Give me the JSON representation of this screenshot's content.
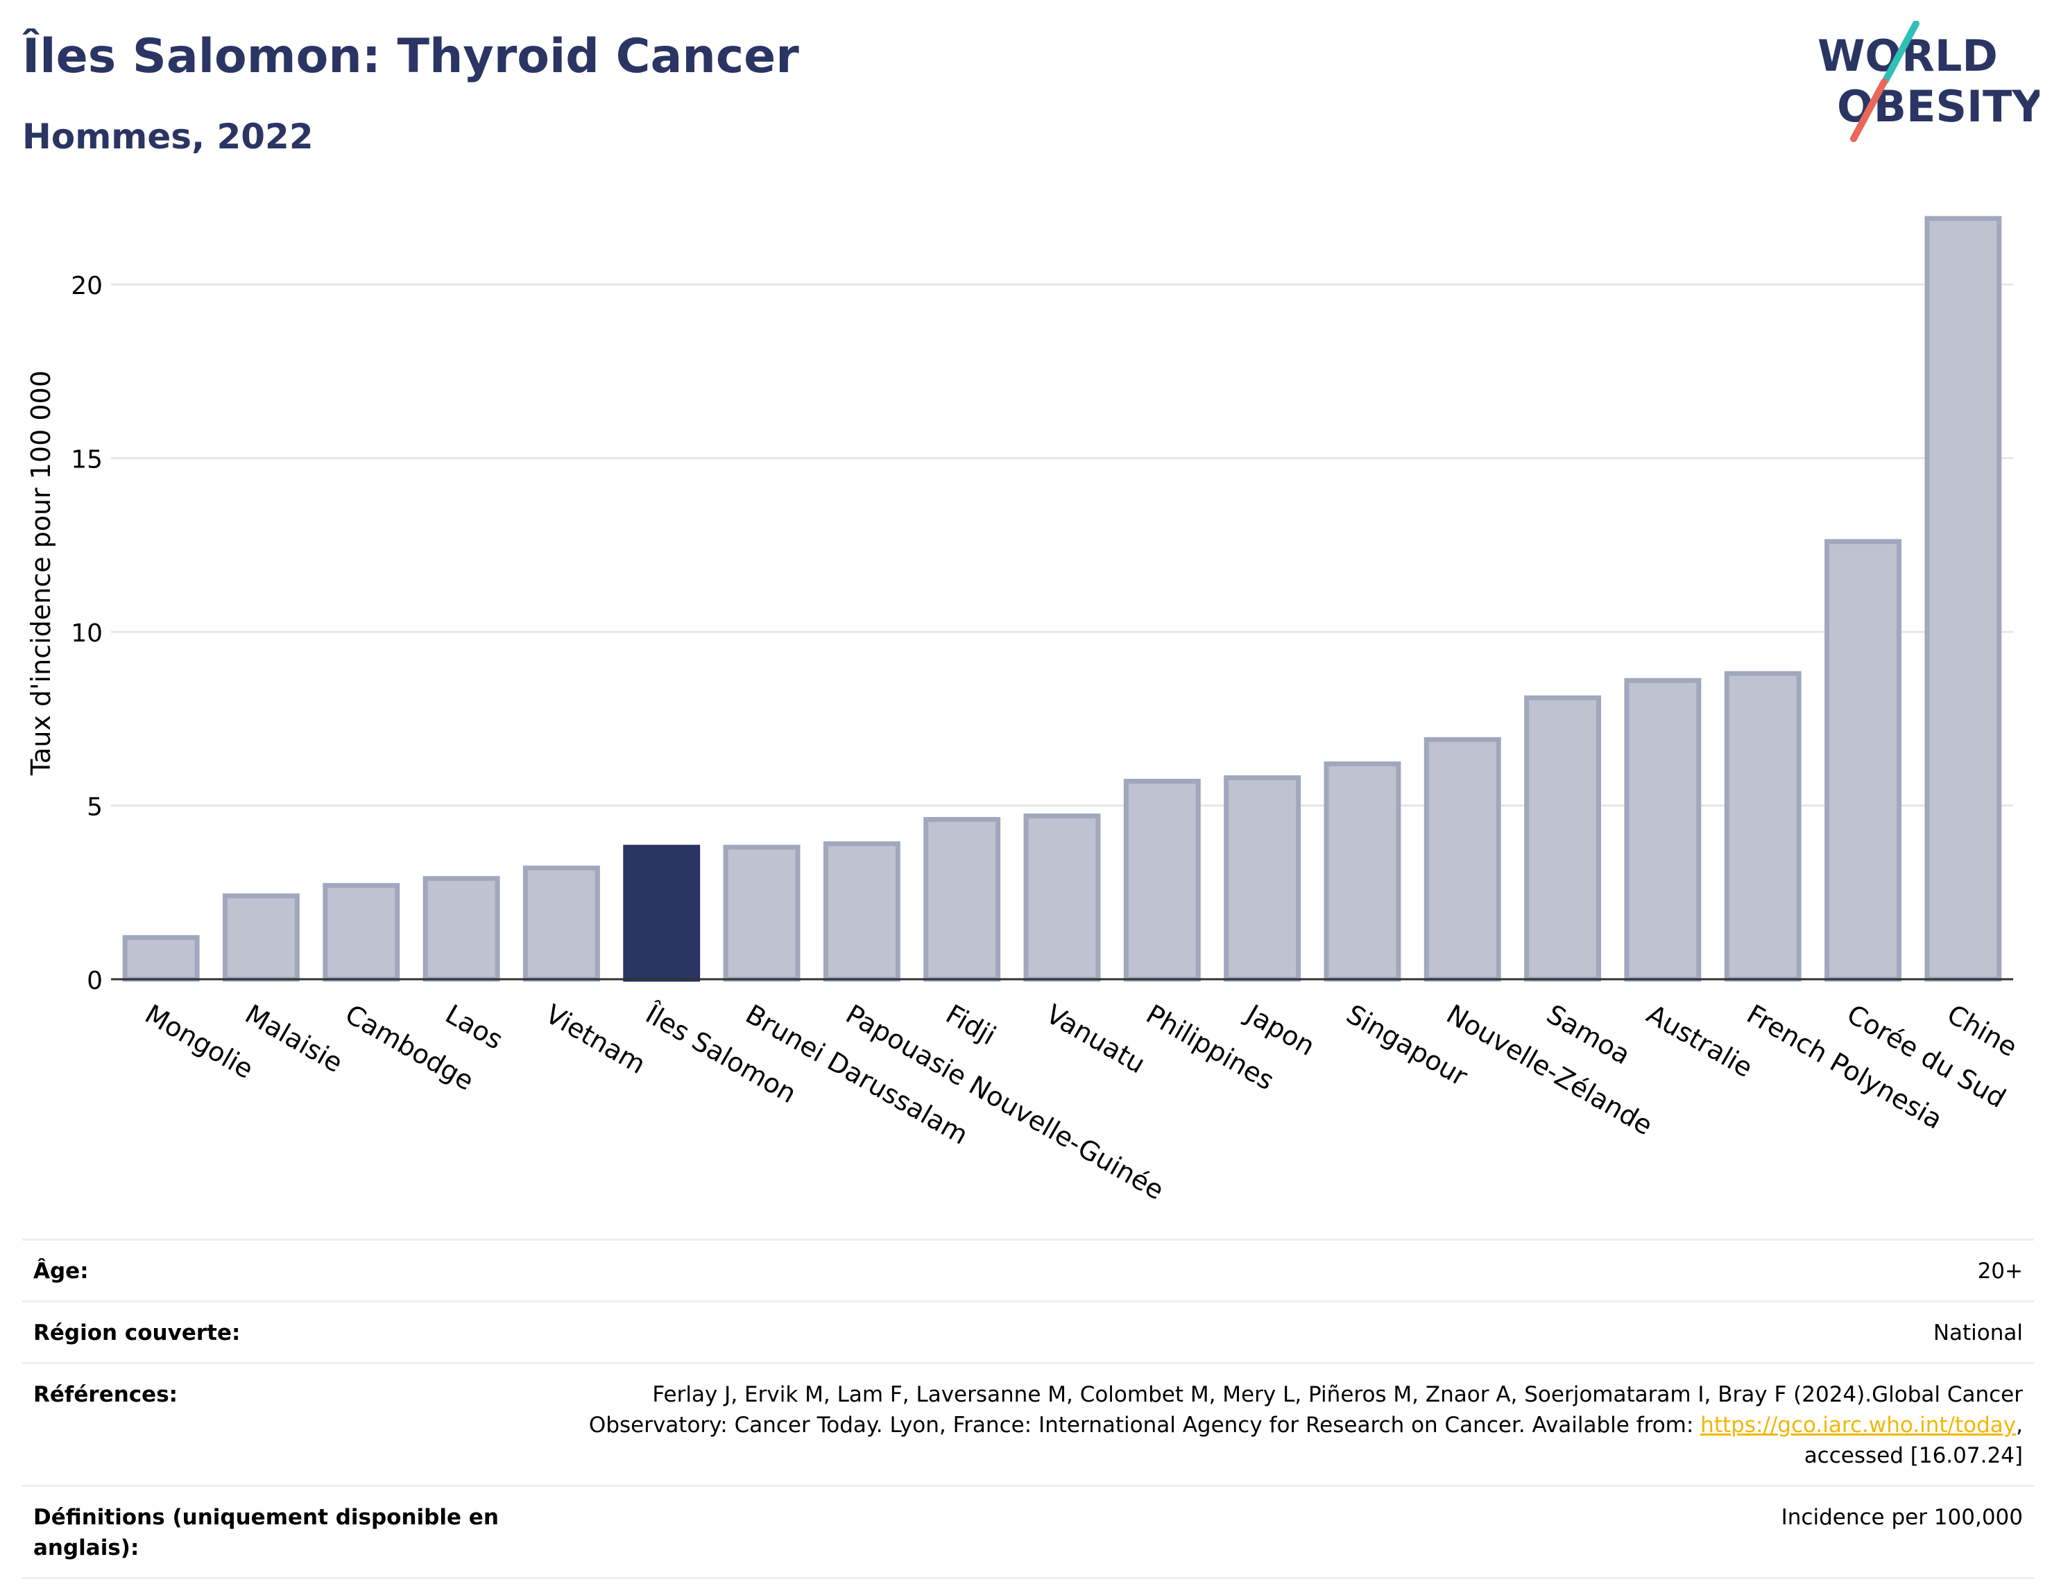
{
  "header": {
    "title": "Îles Salomon: Thyroid Cancer",
    "subtitle": "Hommes, 2022"
  },
  "logo": {
    "line1": "WORLD",
    "line2": "OBESITY"
  },
  "colors": {
    "highlight": "#2a3563",
    "bar_fill": "#bfc3d1",
    "bar_stroke": "#a1a7bd",
    "grid": "#e6e6e6",
    "title": "#2a3563",
    "link": "#f2b705",
    "logo_teal": "#2fbfb5",
    "logo_red": "#e8685a"
  },
  "chart_data": {
    "type": "bar",
    "title": "Îles Salomon: Thyroid Cancer",
    "subtitle": "Hommes, 2022",
    "xlabel": "",
    "ylabel": "Taux d'incidence pour 100 000",
    "ylim": [
      0,
      22
    ],
    "yticks": [
      0,
      5,
      10,
      15,
      20
    ],
    "grid": true,
    "highlight": "Îles Salomon",
    "categories": [
      "Mongolie",
      "Malaisie",
      "Cambodge",
      "Laos",
      "Vietnam",
      "Îles Salomon",
      "Brunei Darussalam",
      "Papouasie Nouvelle-Guinée",
      "Fidji",
      "Vanuatu",
      "Philippines",
      "Japon",
      "Singapour",
      "Nouvelle-Zélande",
      "Samoa",
      "Australie",
      "French Polynesia",
      "Corée du Sud",
      "Chine"
    ],
    "values": [
      1.2,
      2.4,
      2.7,
      2.9,
      3.2,
      3.8,
      3.8,
      3.9,
      4.6,
      4.7,
      5.7,
      5.8,
      6.2,
      6.9,
      8.1,
      8.6,
      8.8,
      12.6,
      21.9
    ]
  },
  "meta": {
    "rows": [
      {
        "label": "Âge:",
        "value": "20+"
      },
      {
        "label": "Région couverte:",
        "value": "National"
      },
      {
        "label": "Références:",
        "value_pre": "Ferlay J, Ervik M, Lam F, Laversanne M, Colombet M, Mery L, Piñeros M, Znaor A, Soerjomataram I, Bray F (2024).Global Cancer Observatory: Cancer Today. Lyon, France: International Agency for Research on Cancer. Available from: ",
        "link": "https://gco.iarc.who.int/today",
        "value_post": ", accessed [16.07.24]"
      },
      {
        "label": "Définitions (uniquement disponible en anglais):",
        "value": "Incidence per 100,000"
      }
    ]
  }
}
